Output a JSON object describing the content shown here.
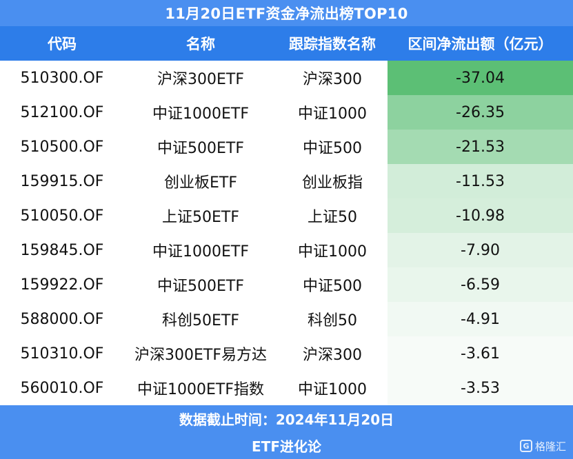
{
  "title": "11月20日ETF资金净流出榜TOP10",
  "header": {
    "code": "代码",
    "name": "名称",
    "index": "跟踪指数名称",
    "flow": "区间净流出额（亿元）"
  },
  "chart_data": {
    "type": "table",
    "title": "11月20日ETF资金净流出榜TOP10",
    "columns": [
      "代码",
      "名称",
      "跟踪指数名称",
      "区间净流出额（亿元）"
    ],
    "rows": [
      {
        "code": "510300.OF",
        "name": "沪深300ETF",
        "index": "沪深300",
        "flow": "-37.04",
        "value": -37.04
      },
      {
        "code": "512100.OF",
        "name": "中证1000ETF",
        "index": "中证1000",
        "flow": "-26.35",
        "value": -26.35
      },
      {
        "code": "510500.OF",
        "name": "中证500ETF",
        "index": "中证500",
        "flow": "-21.53",
        "value": -21.53
      },
      {
        "code": "159915.OF",
        "name": "创业板ETF",
        "index": "创业板指",
        "flow": "-11.53",
        "value": -11.53
      },
      {
        "code": "510050.OF",
        "name": "上证50ETF",
        "index": "上证50",
        "flow": "-10.98",
        "value": -10.98
      },
      {
        "code": "159845.OF",
        "name": "中证1000ETF",
        "index": "中证1000",
        "flow": "-7.90",
        "value": -7.9
      },
      {
        "code": "159922.OF",
        "name": "中证500ETF",
        "index": "中证500",
        "flow": "-6.59",
        "value": -6.59
      },
      {
        "code": "588000.OF",
        "name": "科创50ETF",
        "index": "科创50",
        "flow": "-4.91",
        "value": -4.91
      },
      {
        "code": "510310.OF",
        "name": "沪深300ETF易方达",
        "index": "沪深300",
        "flow": "-3.61",
        "value": -3.61
      },
      {
        "code": "560010.OF",
        "name": "中证1000ETF指数",
        "index": "中证1000",
        "flow": "-3.53",
        "value": -3.53
      }
    ]
  },
  "colors": {
    "title_bg": "#4a8ff0",
    "header_bg": "#2d7de9",
    "heat_strong": "#5cbf75",
    "heat_weak": "#f7fbf8"
  },
  "footer": {
    "date": "数据截止时间：2024年11月20日",
    "source": "ETF进化论"
  },
  "watermark": {
    "icon": "g-logo-icon",
    "text": "格隆汇"
  }
}
